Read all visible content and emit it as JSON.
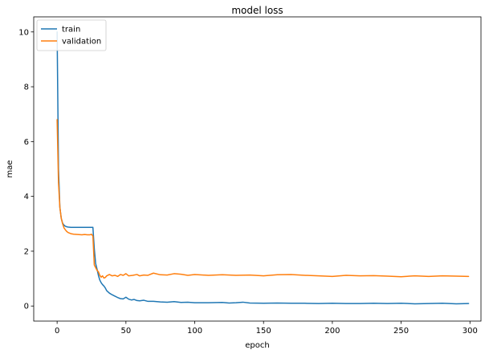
{
  "chart_data": {
    "type": "line",
    "title": "model loss",
    "xlabel": "epoch",
    "ylabel": "mae",
    "xlim": [
      -17,
      308
    ],
    "ylim": [
      -0.55,
      10.55
    ],
    "xticks": [
      0,
      50,
      100,
      150,
      200,
      250,
      300
    ],
    "yticks": [
      0,
      2,
      4,
      6,
      8,
      10
    ],
    "grid": false,
    "legend": {
      "position": "top-left"
    },
    "series": [
      {
        "name": "train",
        "color": "#1f77b4",
        "x": [
          0,
          1,
          2,
          3,
          4,
          5,
          6,
          7,
          8,
          10,
          12,
          15,
          18,
          20,
          22,
          24,
          25,
          26,
          27,
          28,
          29,
          30,
          31,
          32,
          33,
          34,
          35,
          36,
          38,
          40,
          42,
          44,
          46,
          48,
          50,
          52,
          54,
          56,
          58,
          60,
          63,
          66,
          70,
          75,
          80,
          85,
          90,
          95,
          100,
          110,
          120,
          125,
          130,
          135,
          140,
          150,
          160,
          170,
          180,
          190,
          200,
          210,
          220,
          230,
          240,
          250,
          260,
          270,
          280,
          290,
          299
        ],
        "y": [
          10.0,
          5.0,
          3.6,
          3.2,
          3.02,
          2.95,
          2.91,
          2.89,
          2.88,
          2.87,
          2.87,
          2.87,
          2.87,
          2.87,
          2.87,
          2.87,
          2.87,
          2.87,
          2.1,
          1.55,
          1.35,
          1.12,
          0.95,
          0.85,
          0.78,
          0.73,
          0.66,
          0.56,
          0.47,
          0.41,
          0.36,
          0.31,
          0.27,
          0.26,
          0.32,
          0.25,
          0.22,
          0.24,
          0.2,
          0.19,
          0.21,
          0.17,
          0.17,
          0.15,
          0.14,
          0.16,
          0.13,
          0.14,
          0.12,
          0.12,
          0.13,
          0.11,
          0.12,
          0.14,
          0.11,
          0.1,
          0.11,
          0.1,
          0.1,
          0.09,
          0.1,
          0.09,
          0.09,
          0.1,
          0.09,
          0.1,
          0.08,
          0.09,
          0.1,
          0.08,
          0.09
        ]
      },
      {
        "name": "validation",
        "color": "#ff7f0e",
        "x": [
          0,
          1,
          2,
          3,
          4,
          5,
          6,
          7,
          8,
          10,
          12,
          15,
          18,
          20,
          22,
          24,
          25,
          26,
          27,
          28,
          29,
          30,
          31,
          32,
          33,
          34,
          35,
          36,
          38,
          40,
          42,
          44,
          46,
          48,
          50,
          52,
          55,
          58,
          60,
          63,
          66,
          70,
          75,
          80,
          85,
          90,
          95,
          100,
          110,
          120,
          130,
          140,
          150,
          160,
          170,
          180,
          190,
          200,
          210,
          220,
          230,
          240,
          250,
          260,
          270,
          280,
          290,
          299
        ],
        "y": [
          6.8,
          4.5,
          3.6,
          3.2,
          3.0,
          2.85,
          2.78,
          2.72,
          2.68,
          2.64,
          2.62,
          2.61,
          2.6,
          2.61,
          2.6,
          2.6,
          2.62,
          2.55,
          1.5,
          1.4,
          1.3,
          1.25,
          1.12,
          1.05,
          1.1,
          1.02,
          1.04,
          1.1,
          1.15,
          1.1,
          1.12,
          1.08,
          1.15,
          1.12,
          1.18,
          1.1,
          1.12,
          1.15,
          1.1,
          1.13,
          1.12,
          1.2,
          1.14,
          1.13,
          1.18,
          1.16,
          1.12,
          1.15,
          1.12,
          1.14,
          1.12,
          1.13,
          1.1,
          1.14,
          1.15,
          1.12,
          1.1,
          1.08,
          1.12,
          1.1,
          1.11,
          1.09,
          1.07,
          1.1,
          1.08,
          1.1,
          1.09,
          1.08
        ]
      }
    ]
  }
}
